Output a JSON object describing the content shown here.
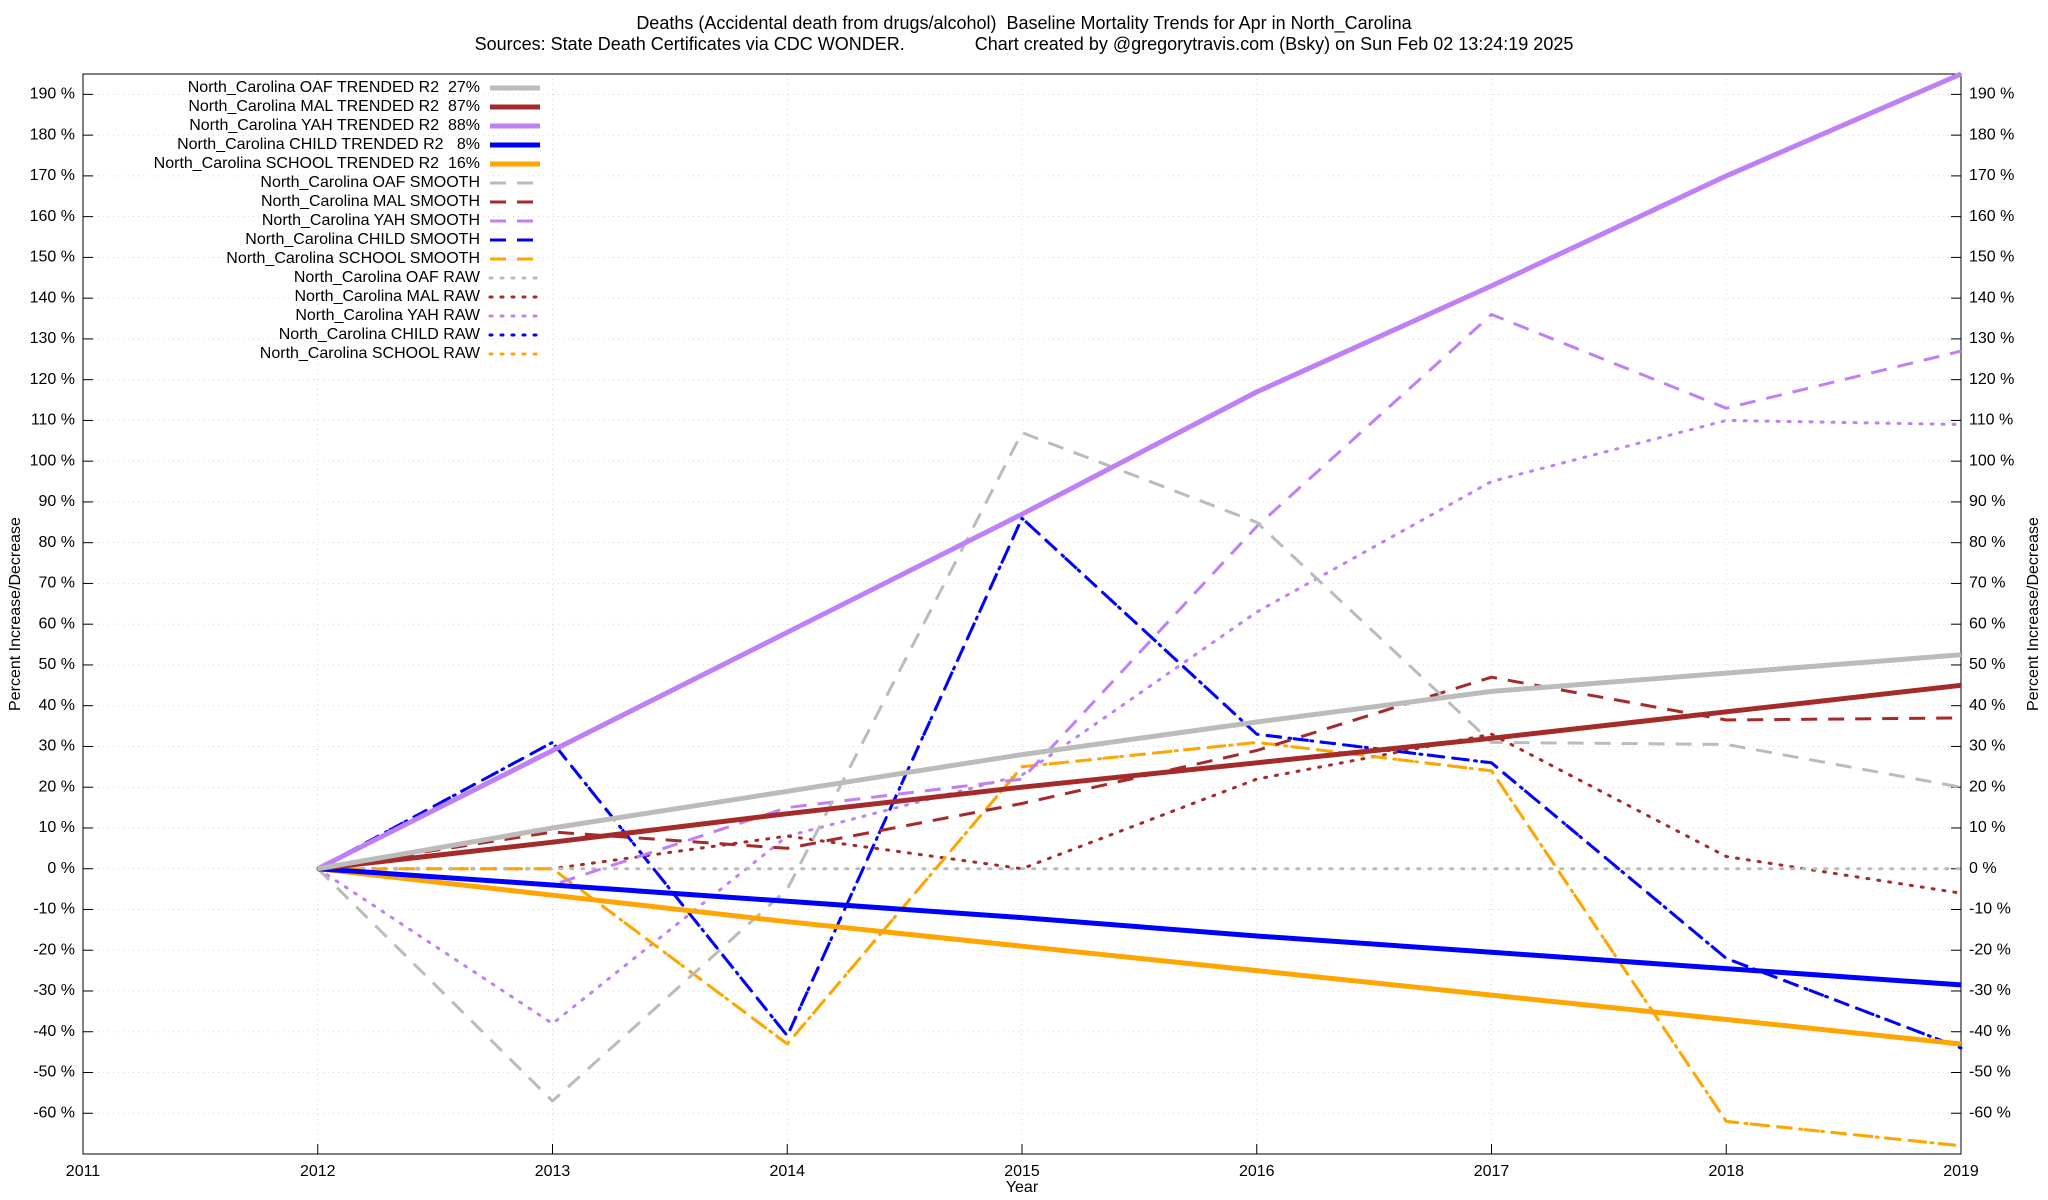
{
  "chart_data": {
    "type": "line",
    "title": "Deaths (Accidental death from drugs/alcohol)  Baseline Mortality Trends for Apr in North_Carolina",
    "subtitle": "Sources: State Death Certificates via CDC WONDER.              Chart created by @gregorytravis.com (Bsky) on Sun Feb 02 13:24:19 2025",
    "xlabel": "Year",
    "ylabel": "Percent Increase/Decrease",
    "x": [
      2012,
      2013,
      2014,
      2015,
      2016,
      2017,
      2018,
      2019
    ],
    "xlim": [
      2011,
      2019
    ],
    "xticks": [
      2011,
      2012,
      2013,
      2014,
      2015,
      2016,
      2017,
      2018,
      2019
    ],
    "ylim": [
      -70,
      195
    ],
    "yticks": [
      {
        "value": -60,
        "label": "-60 %"
      },
      {
        "value": -50,
        "label": "-50 %"
      },
      {
        "value": -40,
        "label": "-40 %"
      },
      {
        "value": -30,
        "label": "-30 %"
      },
      {
        "value": -20,
        "label": "-20 %"
      },
      {
        "value": -10,
        "label": "-10 %"
      },
      {
        "value": 0,
        "label": "0 %"
      },
      {
        "value": 10,
        "label": "10 %"
      },
      {
        "value": 20,
        "label": "20 %"
      },
      {
        "value": 30,
        "label": "30 %"
      },
      {
        "value": 40,
        "label": "40 %"
      },
      {
        "value": 50,
        "label": "50 %"
      },
      {
        "value": 60,
        "label": "60 %"
      },
      {
        "value": 70,
        "label": "70 %"
      },
      {
        "value": 80,
        "label": "80 %"
      },
      {
        "value": 90,
        "label": "90 %"
      },
      {
        "value": 100,
        "label": "100 %"
      },
      {
        "value": 110,
        "label": "110 %"
      },
      {
        "value": 120,
        "label": "120 %"
      },
      {
        "value": 130,
        "label": "130 %"
      },
      {
        "value": 140,
        "label": "140 %"
      },
      {
        "value": 150,
        "label": "150 %"
      },
      {
        "value": 160,
        "label": "160 %"
      },
      {
        "value": 170,
        "label": "170 %"
      },
      {
        "value": 180,
        "label": "180 %"
      },
      {
        "value": 190,
        "label": "190 %"
      }
    ],
    "grid": true,
    "legend": "top-left",
    "series": [
      {
        "name": "North_Carolina OAF TRENDED R2  27%",
        "color": "#bbbbbb",
        "dash": "solid",
        "values": [
          0,
          10,
          19,
          28,
          36,
          43.5,
          48,
          52.5
        ]
      },
      {
        "name": "North_Carolina MAL TRENDED R2  87%",
        "color": "#a52a2a",
        "dash": "solid",
        "values": [
          0,
          6.5,
          13.5,
          20,
          26,
          32,
          38.5,
          45
        ]
      },
      {
        "name": "North_Carolina YAH TRENDED R2  88%",
        "color": "#bf80f5",
        "dash": "solid",
        "values": [
          0,
          29,
          58,
          87,
          117,
          143,
          170,
          195
        ]
      },
      {
        "name": "North_Carolina CHILD TRENDED R2   8%",
        "color": "#0000ff",
        "dash": "solid",
        "values": [
          0,
          -4,
          -8,
          -12,
          -16.5,
          -20.5,
          -24.5,
          -28.5
        ]
      },
      {
        "name": "North_Carolina SCHOOL TRENDED R2  16%",
        "color": "#ffa500",
        "dash": "solid",
        "values": [
          0,
          -6.5,
          -13,
          -19,
          -25,
          -31,
          -37,
          -43
        ]
      },
      {
        "name": "North_Carolina OAF SMOOTH",
        "color": "#bbbbbb",
        "dash": "dashed",
        "values": [
          0,
          -57,
          -5,
          107,
          85,
          31,
          30.5,
          20
        ]
      },
      {
        "name": "North_Carolina MAL SMOOTH",
        "color": "#a52a2a",
        "dash": "dashed",
        "values": [
          0,
          9,
          5,
          16,
          29,
          47,
          36.5,
          37
        ]
      },
      {
        "name": "North_Carolina YAH SMOOTH",
        "color": "#bf80f5",
        "dash": "dashed",
        "values": [
          0,
          -4,
          15,
          22,
          84,
          136,
          113,
          127
        ]
      },
      {
        "name": "North_Carolina CHILD SMOOTH",
        "color": "#0000ff",
        "dash": "dashed",
        "values": [
          0,
          31,
          -41,
          86,
          33,
          26,
          -22,
          -44
        ]
      },
      {
        "name": "North_Carolina SCHOOL SMOOTH",
        "color": "#ffa500",
        "dash": "dashed",
        "values": [
          0,
          0,
          -43,
          25,
          31,
          24,
          -62,
          -68
        ]
      },
      {
        "name": "North_Carolina OAF RAW",
        "color": "#bbbbbb",
        "dash": "dotted",
        "values": [
          0,
          0,
          0,
          0,
          0,
          0,
          0,
          0
        ]
      },
      {
        "name": "North_Carolina MAL RAW",
        "color": "#a52a2a",
        "dash": "dotted",
        "values": [
          0,
          0,
          8,
          0,
          22,
          33,
          3,
          -6
        ]
      },
      {
        "name": "North_Carolina YAH RAW",
        "color": "#bf80f5",
        "dash": "dotted",
        "values": [
          0,
          -38,
          8,
          23,
          63,
          95,
          110,
          109
        ]
      },
      {
        "name": "North_Carolina CHILD RAW",
        "color": "#0000ff",
        "dash": "dotted",
        "values": [
          0,
          31,
          -41,
          86,
          33,
          26,
          -22,
          -44
        ]
      },
      {
        "name": "North_Carolina SCHOOL RAW",
        "color": "#ffa500",
        "dash": "dotted",
        "values": [
          0,
          0,
          -43,
          25,
          31,
          24,
          -62,
          -68
        ]
      }
    ]
  }
}
